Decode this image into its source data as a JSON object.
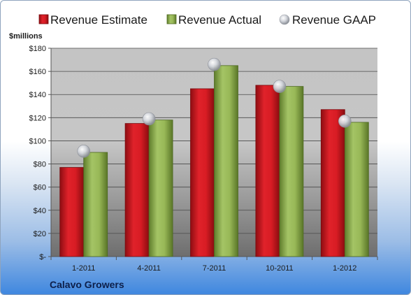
{
  "chart_data": {
    "type": "bar",
    "company": "Calavo Growers",
    "ylabel": "$millions",
    "categories": [
      "1-2011",
      "4-2011",
      "7-2011",
      "10-2011",
      "1-2012"
    ],
    "ylim": [
      0,
      180
    ],
    "yticks": [
      0,
      20,
      40,
      60,
      80,
      100,
      120,
      140,
      160,
      180
    ],
    "ytick_labels": [
      "$-",
      "$20",
      "$40",
      "$60",
      "$80",
      "$100",
      "$120",
      "$140",
      "$160",
      "$180"
    ],
    "grid": true,
    "legend_position": "top",
    "series": [
      {
        "name": "Revenue Estimate",
        "type": "bar",
        "color": "#c0141c",
        "values": [
          77,
          115,
          145,
          148,
          127
        ]
      },
      {
        "name": "Revenue Actual",
        "type": "bar",
        "color": "#8aaa4a",
        "values": [
          90,
          118,
          165,
          147,
          116
        ]
      },
      {
        "name": "Revenue GAAP",
        "type": "marker",
        "color": "#b8bcc4",
        "values": [
          91,
          119,
          166,
          147,
          117
        ]
      }
    ]
  }
}
